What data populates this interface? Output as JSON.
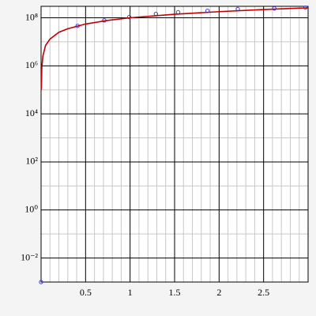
{
  "chart_data": {
    "type": "line",
    "ylog": true,
    "grid": true,
    "xlim": [
      0,
      3
    ],
    "ylim": [
      0.001,
      300000000
    ],
    "xticks": [
      0.5,
      1,
      1.5,
      2,
      2.5
    ],
    "xminorticks": [
      0.1,
      0.2,
      0.3,
      0.4,
      0.6,
      0.7,
      0.8,
      0.9,
      1.1,
      1.2,
      1.3,
      1.4,
      1.6,
      1.7,
      1.8,
      1.9,
      2.1,
      2.2,
      2.3,
      2.4,
      2.6,
      2.7,
      2.8,
      2.9
    ],
    "yticks": [
      {
        "value": 0.01,
        "label": "10⁻²"
      },
      {
        "value": 1,
        "label": "10⁰"
      },
      {
        "value": 100,
        "label": "10²"
      },
      {
        "value": 10000,
        "label": "10⁴"
      },
      {
        "value": 1000000,
        "label": "10⁶"
      },
      {
        "value": 100000000,
        "label": "10⁸"
      }
    ],
    "yminorticks": [
      0.1,
      10,
      1000,
      100000,
      10000000
    ],
    "series": [
      {
        "style": "markers",
        "color": "#3a3aff",
        "x": [
          0,
          0.41,
          0.71,
          0.99,
          1.29,
          1.54,
          1.87,
          2.21,
          2.62,
          2.97
        ],
        "values": [
          0.001,
          46000000,
          78000000,
          107000000,
          145000000,
          170000000,
          195000000,
          230000000,
          245000000,
          265000000
        ]
      },
      {
        "style": "line",
        "color": "#c00000",
        "x": [
          0.003,
          0.008,
          0.02,
          0.05,
          0.1,
          0.2,
          0.3,
          0.5,
          0.75,
          1,
          1.5,
          2,
          2.5,
          3
        ],
        "values": [
          100000,
          800000,
          2500000,
          7000000,
          13000000,
          25000000,
          35000000,
          55000000,
          78000000,
          100000000,
          140000000,
          180000000,
          220000000,
          260000000
        ]
      }
    ]
  }
}
